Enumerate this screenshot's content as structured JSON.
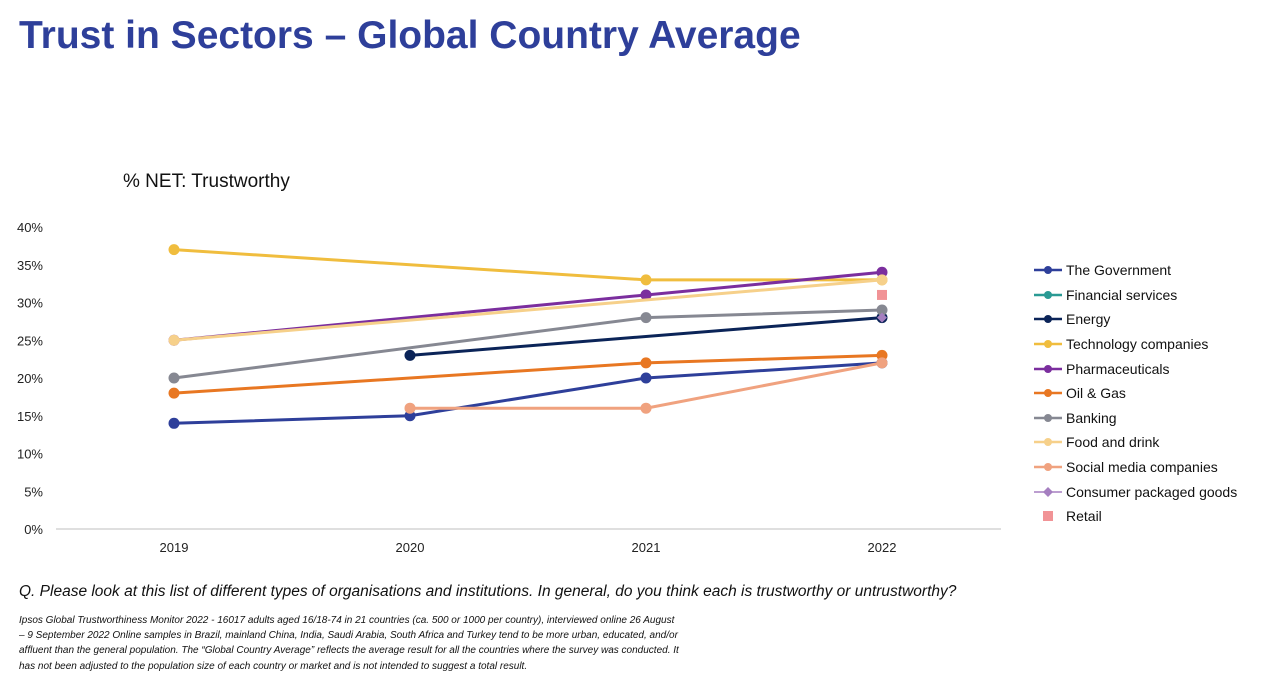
{
  "title": "Trust in Sectors – Global Country Average",
  "question": "Q. Please look at this list of different types of organisations and institutions. In general, do you think each is trustworthy or untrustworthy?",
  "note": "Ipsos Global Trustworthiness Monitor 2022 - 16017 adults aged 16/18-74 in 21 countries (ca. 500 or 1000 per country), interviewed online 26 August – 9 September 2022 Online samples in Brazil, mainland China, India, Saudi Arabia, South Africa and Turkey tend to be more urban, educated, and/or affluent than the general population. The “Global Country Average” reflects the average result for all the countries where the survey was conducted. It has not been adjusted to the population size of each country or market and is not intended to suggest a total result.",
  "chart_data": {
    "type": "line",
    "title": "% NET: Trustworthy",
    "categories": [
      "2019",
      "2020",
      "2021",
      "2022"
    ],
    "ylim": [
      0,
      40
    ],
    "yticks": [
      "0%",
      "5%",
      "10%",
      "15%",
      "20%",
      "25%",
      "30%",
      "35%",
      "40%"
    ],
    "grid": false,
    "legend_position": "right",
    "series": [
      {
        "name": "The Government",
        "color": "#2e3f9a",
        "marker": "circle",
        "values": [
          14,
          15,
          20,
          22
        ]
      },
      {
        "name": "Financial services",
        "color": "#2a9a94",
        "marker": "circle",
        "values": [
          null,
          null,
          null,
          null
        ]
      },
      {
        "name": "Energy",
        "color": "#0b2458",
        "marker": "circle",
        "values": [
          null,
          23,
          null,
          28
        ]
      },
      {
        "name": "Technology companies",
        "color": "#f0bd3e",
        "marker": "circle",
        "values": [
          37,
          null,
          33,
          33
        ]
      },
      {
        "name": "Pharmaceuticals",
        "color": "#7b2e9e",
        "marker": "circle",
        "values": [
          25,
          null,
          31,
          34
        ]
      },
      {
        "name": "Oil & Gas",
        "color": "#e87722",
        "marker": "circle",
        "values": [
          18,
          null,
          22,
          23
        ]
      },
      {
        "name": "Banking",
        "color": "#868892",
        "marker": "circle",
        "values": [
          20,
          null,
          28,
          29
        ]
      },
      {
        "name": "Food and drink",
        "color": "#f6d08a",
        "marker": "circle",
        "values": [
          25,
          null,
          null,
          33
        ]
      },
      {
        "name": "Social media companies",
        "color": "#f0a27f",
        "marker": "circle",
        "values": [
          null,
          16,
          16,
          22
        ]
      },
      {
        "name": "Consumer packaged goods",
        "color": "#a57fc0",
        "marker": "diamond",
        "values": [
          null,
          null,
          null,
          28
        ]
      },
      {
        "name": "Retail",
        "color": "#f19396",
        "marker": "square",
        "values": [
          null,
          null,
          null,
          31
        ]
      }
    ]
  }
}
